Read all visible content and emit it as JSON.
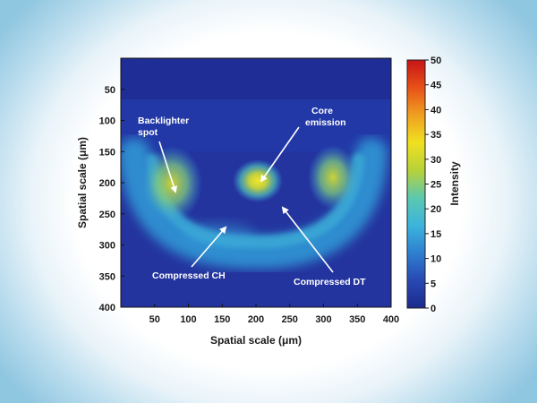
{
  "chart_data": {
    "type": "heatmap",
    "title": "",
    "xlabel": "Spatial scale (μm)",
    "ylabel": "Spatial scale (μm)",
    "xlim": [
      0,
      400
    ],
    "ylim": [
      0,
      400
    ],
    "x_ticks": [
      50,
      100,
      150,
      200,
      250,
      300,
      350,
      400
    ],
    "y_ticks": [
      50,
      100,
      150,
      200,
      250,
      300,
      350,
      400
    ],
    "colorbar": {
      "label": "Intensity",
      "range": [
        0,
        50
      ],
      "ticks": [
        0,
        5,
        10,
        15,
        20,
        25,
        30,
        35,
        40,
        45,
        50
      ],
      "colormap": [
        "#1c2a8c",
        "#2848b4",
        "#2e7fd0",
        "#3cb4dc",
        "#5cc8b0",
        "#b8d238",
        "#f0e020",
        "#f0a020",
        "#e85018",
        "#c81418"
      ]
    },
    "features": [
      {
        "label": "Backlighter spot",
        "x": 80,
        "y": 222,
        "intensity": 28
      },
      {
        "label": "Core emission",
        "x": 200,
        "y": 200,
        "intensity": 32
      },
      {
        "label": "Compressed CH",
        "x": 150,
        "y": 268,
        "intensity": 18
      },
      {
        "label": "Compressed DT",
        "x": 230,
        "y": 235,
        "intensity": 14
      }
    ],
    "grid": false
  }
}
